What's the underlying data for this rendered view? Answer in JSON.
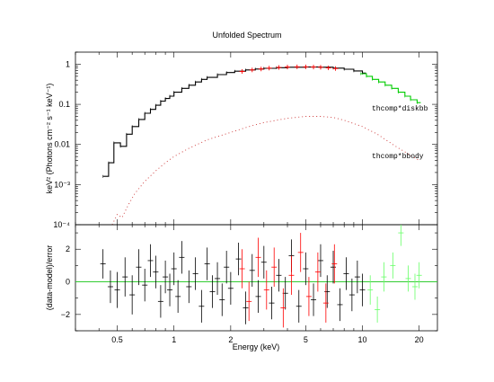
{
  "chart_data": [
    {
      "type": "line",
      "panel": "spectrum",
      "title": "Unfolded Spectrum",
      "xlabel": "Energy (keV)",
      "ylabel": "keV² (Photons cm⁻² s⁻¹ keV⁻¹)",
      "xscale": "log",
      "yscale": "log",
      "xlim": [
        0.3,
        25
      ],
      "ylim": [
        0.0001,
        2
      ],
      "x_ticks": [
        0.5,
        1,
        2,
        5,
        10,
        20
      ],
      "y_tick_labels": [
        "1",
        "0.1",
        "0.01",
        "10⁻³",
        "10⁻⁴"
      ],
      "y_tick_values": [
        1,
        0.1,
        0.01,
        0.001,
        0.0001
      ],
      "annotations": [
        "thcomp*diskbb",
        "thcomp*bbody"
      ],
      "series": [
        {
          "color": "#000000",
          "style": "steps",
          "x": [
            0.42,
            0.45,
            0.48,
            0.52,
            0.56,
            0.6,
            0.65,
            0.7,
            0.75,
            0.8,
            0.85,
            0.9,
            0.95,
            1.0,
            1.1,
            1.2,
            1.3,
            1.4,
            1.5,
            1.7,
            1.9,
            2.1,
            2.4,
            2.7,
            3.0,
            3.5,
            4.0,
            5.0,
            6.0,
            7.0,
            8.0,
            9.0,
            10.0
          ],
          "y": [
            0.0016,
            0.0035,
            0.011,
            0.009,
            0.018,
            0.028,
            0.042,
            0.06,
            0.075,
            0.095,
            0.12,
            0.14,
            0.16,
            0.2,
            0.25,
            0.3,
            0.36,
            0.42,
            0.47,
            0.55,
            0.62,
            0.67,
            0.72,
            0.76,
            0.79,
            0.82,
            0.84,
            0.85,
            0.84,
            0.8,
            0.75,
            0.68,
            0.6
          ]
        },
        {
          "color": "#ff0000",
          "style": "markers",
          "x": [
            2.3,
            2.6,
            2.9,
            3.2,
            3.6,
            4.0,
            4.5,
            5.0,
            5.5,
            6.0,
            6.6,
            7.2
          ],
          "y": [
            0.66,
            0.72,
            0.76,
            0.8,
            0.83,
            0.85,
            0.86,
            0.86,
            0.85,
            0.84,
            0.81,
            0.78
          ]
        },
        {
          "color": "#00cc00",
          "style": "steps",
          "x": [
            9.8,
            10.5,
            11.3,
            12.2,
            13.2,
            14.3,
            15.5,
            16.8,
            18.0,
            19.5
          ],
          "y": [
            0.58,
            0.5,
            0.42,
            0.36,
            0.3,
            0.25,
            0.2,
            0.16,
            0.13,
            0.11
          ]
        },
        {
          "color": "#cc3333",
          "style": "dotted",
          "x": [
            0.47,
            0.5,
            0.53,
            0.57,
            0.62,
            0.7,
            0.8,
            0.9,
            1.0,
            1.2,
            1.5,
            2.0,
            2.5,
            3.0,
            4.0,
            5.0,
            6.0,
            7.0,
            8.0,
            10.0,
            12.0,
            15.0,
            20.0
          ],
          "y": [
            0.0001,
            0.00018,
            0.00015,
            0.0003,
            0.0006,
            0.0012,
            0.0022,
            0.0035,
            0.005,
            0.008,
            0.013,
            0.02,
            0.028,
            0.035,
            0.045,
            0.05,
            0.05,
            0.047,
            0.04,
            0.028,
            0.018,
            0.009,
            0.004
          ]
        }
      ]
    },
    {
      "type": "scatter",
      "panel": "residuals",
      "xlabel": "Energy (keV)",
      "ylabel": "(data-model)/error",
      "xscale": "log",
      "xlim": [
        0.3,
        25
      ],
      "ylim": [
        -3,
        3.5
      ],
      "x_tick_labels": [
        "0.5",
        "1",
        "2",
        "5",
        "10",
        "20"
      ],
      "y_tick_labels": [
        "2",
        "0",
        "−2"
      ],
      "y_tick_values": [
        2,
        0,
        -2
      ],
      "zero_line_color": "#33cc33",
      "series": [
        {
          "color": "#000000",
          "points": [
            [
              0.42,
              1.1,
              0.9
            ],
            [
              0.46,
              -0.3,
              1
            ],
            [
              0.5,
              -0.5,
              1.1
            ],
            [
              0.55,
              0.3,
              1.2
            ],
            [
              0.6,
              -0.8,
              1.2
            ],
            [
              0.65,
              0.9,
              1.1
            ],
            [
              0.7,
              -0.2,
              1
            ],
            [
              0.75,
              1.3,
              1
            ],
            [
              0.8,
              0.6,
              1
            ],
            [
              0.85,
              -1.2,
              1
            ],
            [
              0.9,
              0.3,
              1
            ],
            [
              0.95,
              -0.5,
              1
            ],
            [
              1.0,
              0.8,
              1
            ],
            [
              1.05,
              -0.9,
              1
            ],
            [
              1.1,
              1.5,
              1
            ],
            [
              1.2,
              -0.3,
              1
            ],
            [
              1.3,
              0.5,
              1
            ],
            [
              1.4,
              -1.5,
              1
            ],
            [
              1.5,
              1.1,
              1
            ],
            [
              1.6,
              -0.6,
              1
            ],
            [
              1.7,
              0.2,
              1
            ],
            [
              1.8,
              -1.1,
              1
            ],
            [
              1.9,
              0.9,
              1
            ],
            [
              2.0,
              -0.4,
              1
            ],
            [
              2.2,
              1.4,
              1
            ],
            [
              2.4,
              -1.6,
              1
            ],
            [
              2.6,
              0.7,
              1
            ],
            [
              2.8,
              -0.9,
              1
            ],
            [
              3.0,
              1.2,
              1
            ],
            [
              3.3,
              -1.3,
              1
            ],
            [
              3.6,
              0.4,
              1
            ],
            [
              3.9,
              -0.7,
              1
            ],
            [
              4.2,
              1.6,
              1
            ],
            [
              4.6,
              -1.5,
              1
            ],
            [
              5.0,
              0.8,
              1
            ],
            [
              5.5,
              -1.1,
              1
            ],
            [
              6.0,
              1.3,
              1
            ],
            [
              6.5,
              -0.6,
              1
            ],
            [
              7.0,
              0.9,
              1
            ],
            [
              7.6,
              -1.4,
              1
            ],
            [
              8.2,
              0.5,
              1
            ],
            [
              8.8,
              -0.8,
              1
            ],
            [
              9.4,
              0.3,
              1
            ],
            [
              10.0,
              -0.5,
              1
            ]
          ]
        },
        {
          "color": "#ff0000",
          "points": [
            [
              2.3,
              0.8,
              1.2
            ],
            [
              2.5,
              -1.2,
              1.2
            ],
            [
              2.8,
              1.5,
              1.2
            ],
            [
              3.1,
              -0.5,
              1.2
            ],
            [
              3.4,
              0.9,
              1.2
            ],
            [
              3.8,
              -1.6,
              1.2
            ],
            [
              4.2,
              0.4,
              1.2
            ],
            [
              4.7,
              1.8,
              1.2
            ],
            [
              5.2,
              -0.9,
              1.2
            ],
            [
              5.8,
              0.6,
              1.2
            ],
            [
              6.4,
              -1.3,
              1.2
            ],
            [
              7.1,
              1.1,
              1.2
            ]
          ]
        },
        {
          "color": "#66ff66",
          "points": [
            [
              11.0,
              -0.5,
              0.9
            ],
            [
              12.0,
              -1.7,
              0.8
            ],
            [
              13.0,
              0.3,
              0.9
            ],
            [
              14.5,
              1.0,
              0.8
            ],
            [
              16.0,
              3.0,
              0.8
            ],
            [
              17.5,
              0.2,
              0.8
            ],
            [
              19.0,
              -0.3,
              0.8
            ],
            [
              20.0,
              0.4,
              0.8
            ]
          ]
        }
      ]
    }
  ]
}
